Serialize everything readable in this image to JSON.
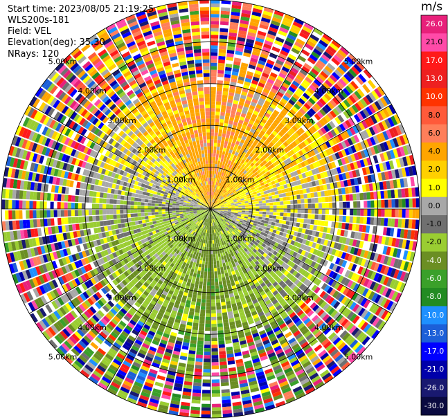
{
  "info": {
    "start_time": "Start time: 2023/08/05 21:19:25",
    "station": "WLS200s-181",
    "field": "Field: VEL",
    "elevation": "Elevation(deg): 35.30",
    "nrays": "NRays: 120"
  },
  "colorbar": {
    "unit": "m/s",
    "ticks": [
      "26.0",
      "21.0",
      "17.0",
      "13.0",
      "10.0",
      "8.0",
      "6.0",
      "4.0",
      "2.0",
      "1.0",
      "0.0",
      "-1.0",
      "-2.0",
      "-4.0",
      "-6.0",
      "-8.0",
      "-10.0",
      "-13.0",
      "-17.0",
      "-21.0",
      "-26.0",
      "-30.0"
    ],
    "colors": [
      "#e8207a",
      "#ff4aa8",
      "#ff1a1a",
      "#ee2020",
      "#ff3300",
      "#ff5a3a",
      "#ff7f5a",
      "#ffa500",
      "#ffd000",
      "#ffff00",
      "#a8a8a8",
      "#707070",
      "#9acd32",
      "#6b8e23",
      "#3aa02a",
      "#228b22",
      "#1e90ff",
      "#1c5fd8",
      "#0000ff",
      "#0000aa",
      "#191970",
      "#0a0a40"
    ]
  },
  "chart_data": {
    "type": "heatmap",
    "projection": "polar (PPI)",
    "field": "VEL",
    "units": "m/s",
    "nrays": 120,
    "range_ring_labels": [
      "1.00km",
      "2.00km",
      "3.00km",
      "4.00km",
      "5.00km"
    ],
    "range_ring_values_km": [
      1,
      2,
      3,
      4,
      5
    ],
    "max_range_km": 5,
    "colorbar_range": [
      -30,
      26
    ],
    "colorbar_ticks": [
      26,
      21,
      17,
      13,
      10,
      8,
      6,
      4,
      2,
      1,
      0,
      -1,
      -2,
      -4,
      -6,
      -8,
      -10,
      -13,
      -17,
      -21,
      -26,
      -30
    ],
    "dominant_velocity_by_sector": [
      {
        "sector": "north",
        "velocity": 4.0
      },
      {
        "sector": "northeast",
        "velocity": 2.0
      },
      {
        "sector": "east",
        "velocity": 0.0
      },
      {
        "sector": "south",
        "velocity": -5.0
      },
      {
        "sector": "west",
        "velocity": -2.0
      }
    ],
    "grid": true
  }
}
